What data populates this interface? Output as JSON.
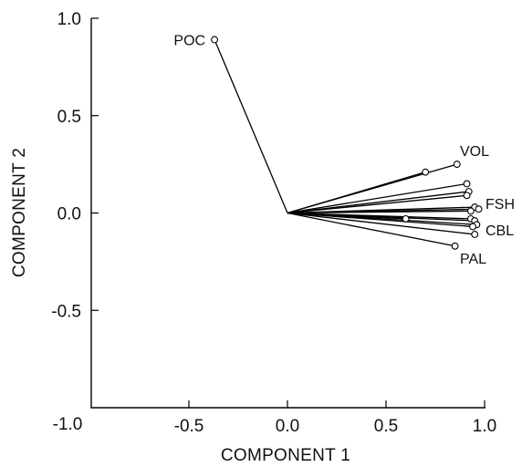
{
  "chart_data": {
    "type": "scatter",
    "title": "",
    "xlabel": "COMPONENT 1",
    "ylabel": "COMPONENT 2",
    "xlim": [
      -1.0,
      1.0
    ],
    "ylim": [
      -1.0,
      1.0
    ],
    "xticks": [
      "-1.0",
      "-0.5",
      "0.0",
      "0.5",
      "1.0"
    ],
    "yticks": [
      "1.0",
      "0.5",
      "0.0",
      "-0.5"
    ],
    "grid": false,
    "origin": [
      0,
      0
    ],
    "points": [
      {
        "x": -0.37,
        "y": 0.89,
        "label": "POC"
      },
      {
        "x": 0.7,
        "y": 0.21,
        "label": ""
      },
      {
        "x": 0.86,
        "y": 0.25,
        "label": "VOL"
      },
      {
        "x": 0.91,
        "y": 0.15,
        "label": ""
      },
      {
        "x": 0.92,
        "y": 0.11,
        "label": ""
      },
      {
        "x": 0.91,
        "y": 0.09,
        "label": ""
      },
      {
        "x": 0.95,
        "y": 0.03,
        "label": ""
      },
      {
        "x": 0.97,
        "y": 0.02,
        "label": "FSH"
      },
      {
        "x": 0.93,
        "y": 0.01,
        "label": ""
      },
      {
        "x": 0.6,
        "y": -0.03,
        "label": ""
      },
      {
        "x": 0.93,
        "y": -0.03,
        "label": ""
      },
      {
        "x": 0.95,
        "y": -0.04,
        "label": ""
      },
      {
        "x": 0.96,
        "y": -0.06,
        "label": "CBL"
      },
      {
        "x": 0.94,
        "y": -0.07,
        "label": ""
      },
      {
        "x": 0.95,
        "y": -0.11,
        "label": ""
      },
      {
        "x": 0.85,
        "y": -0.17,
        "label": "PAL"
      }
    ]
  }
}
